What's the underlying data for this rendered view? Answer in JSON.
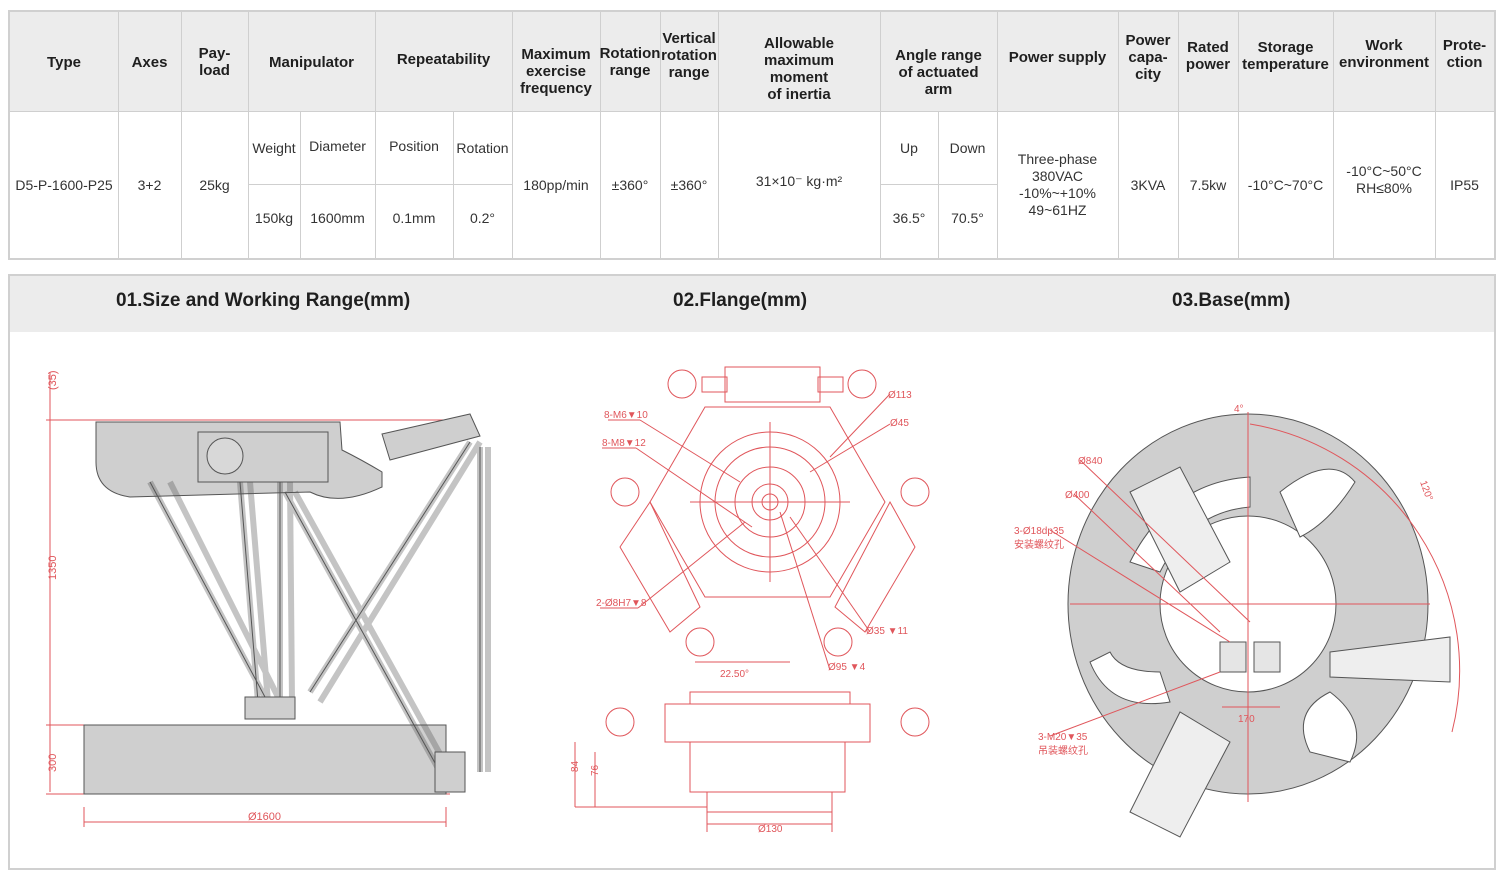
{
  "spec_table": {
    "headers": {
      "type": "Type",
      "axes": "Axes",
      "payload": "Pay-\nload",
      "manipulator": "Manipulator",
      "repeatability": "Repeatability",
      "max_freq": "Maximum\nexercise\nfrequency",
      "rotation_range": "Rotation\nrange",
      "vertical_rotation_range": "Vertical\nrotation\nrange",
      "moment_of_inertia": "Allowable\nmaximum\nmoment\nof inertia",
      "angle_range": "Angle range\nof actuated\narm",
      "power_supply": "Power supply",
      "power_capacity": "Power\ncapa-\ncity",
      "rated_power": "Rated\npower",
      "storage_temperature": "Storage\ntemperature",
      "work_environment": "Work\nenvironment",
      "protection": "Prote-\nction"
    },
    "subheaders": {
      "weight": "Weight",
      "diameter": "Diameter",
      "position": "Position",
      "rotation": "Rotation",
      "up": "Up",
      "down": "Down"
    },
    "values": {
      "type": "D5-P-1600-P25",
      "axes": "3+2",
      "payload": "25kg",
      "weight": "150kg",
      "diameter": "1600mm",
      "position": "0.1mm",
      "rotation": "0.2°",
      "max_freq": "180pp/min",
      "rotation_range": "±360°",
      "vertical_rotation_range": "±360°",
      "moment_of_inertia": "31×10⁻  kg·m²",
      "up": "36.5°",
      "down": "70.5°",
      "power_supply": "Three-phase\n380VAC\n-10%~+10%\n49~61HZ",
      "power_capacity": "3KVA",
      "rated_power": "7.5kw",
      "storage_temperature": "-10°C~70°C",
      "work_environment": "-10°C~50°C\nRH≤80%",
      "protection": "IP55"
    }
  },
  "drawings": {
    "titles": {
      "size": "01.Size and Working Range(mm)",
      "flange": "02.Flange(mm)",
      "base": "03.Base(mm)"
    },
    "size_dims": {
      "d35": "(35)",
      "d1350": "1350",
      "d300": "300",
      "d1600": "Ø1600"
    },
    "flange_dims": {
      "m6": "8-M6▼10",
      "m8": "8-M8▼12",
      "h7": "2-Ø8H7▼8",
      "d113": "Ø113",
      "d45": "Ø45",
      "d35": "Ø35 ▼11",
      "d95": "Ø95 ▼4",
      "angle": "22.50°",
      "h84": "84",
      "h76": "76",
      "d130": "Ø130"
    },
    "base_dims": {
      "a4": "4°",
      "a120": "120°",
      "d840": "Ø840",
      "d400": "Ø400",
      "holes1": "3-Ø18dp35",
      "holes1_note": "安装螺纹孔",
      "w170": "170",
      "holes2": "3-M20▼35",
      "holes2_note": "吊装螺纹孔"
    },
    "colors": {
      "line_red": "#e0565b",
      "fill_gray": "#cfcfcf",
      "dark": "#555555"
    }
  }
}
